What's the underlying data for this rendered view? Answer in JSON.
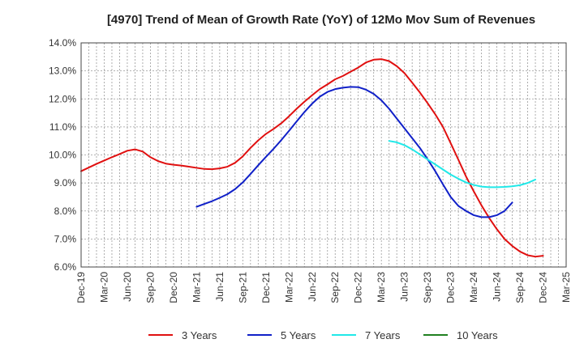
{
  "chart_data": {
    "type": "line",
    "title": "[4970]  Trend of Mean of Growth Rate (YoY) of 12Mo Mov Sum of Revenues",
    "xlabel": "",
    "ylabel": "",
    "ylim": [
      6.0,
      14.0
    ],
    "y_ticks": [
      6.0,
      7.0,
      8.0,
      9.0,
      10.0,
      11.0,
      12.0,
      13.0,
      14.0
    ],
    "y_tick_labels": [
      "6.0%",
      "7.0%",
      "8.0%",
      "9.0%",
      "10.0%",
      "11.0%",
      "12.0%",
      "13.0%",
      "14.0%"
    ],
    "x_tick_labels": [
      "Dec-19",
      "Mar-20",
      "Jun-20",
      "Sep-20",
      "Dec-20",
      "Mar-21",
      "Jun-21",
      "Sep-21",
      "Dec-21",
      "Mar-22",
      "Jun-22",
      "Sep-22",
      "Dec-22",
      "Mar-23",
      "Jun-23",
      "Sep-23",
      "Dec-23",
      "Mar-24",
      "Jun-24",
      "Sep-24",
      "Dec-24",
      "Mar-25"
    ],
    "x_range_months": [
      0,
      63
    ],
    "grid": true,
    "legend_position": "bottom",
    "series": [
      {
        "name": "3 Years",
        "color": "#e01010",
        "start_month": 0,
        "values": [
          9.42,
          9.55,
          9.68,
          9.8,
          9.92,
          10.03,
          10.15,
          10.2,
          10.12,
          9.92,
          9.78,
          9.69,
          9.65,
          9.62,
          9.58,
          9.54,
          9.5,
          9.49,
          9.52,
          9.58,
          9.72,
          9.95,
          10.25,
          10.52,
          10.75,
          10.93,
          11.13,
          11.38,
          11.65,
          11.9,
          12.13,
          12.35,
          12.52,
          12.7,
          12.82,
          12.97,
          13.12,
          13.3,
          13.4,
          13.42,
          13.35,
          13.17,
          12.92,
          12.58,
          12.23,
          11.85,
          11.45,
          11.0,
          10.42,
          9.83,
          9.23,
          8.7,
          8.2,
          7.75,
          7.35,
          7.0,
          6.75,
          6.55,
          6.42,
          6.37,
          6.4
        ]
      },
      {
        "name": "5 Years",
        "color": "#1020c8",
        "start_month": 15,
        "values": [
          8.15,
          8.25,
          8.35,
          8.47,
          8.6,
          8.78,
          9.02,
          9.32,
          9.63,
          9.93,
          10.22,
          10.53,
          10.86,
          11.2,
          11.53,
          11.83,
          12.08,
          12.25,
          12.35,
          12.4,
          12.43,
          12.42,
          12.33,
          12.18,
          11.95,
          11.65,
          11.3,
          10.95,
          10.6,
          10.25,
          9.85,
          9.42,
          8.95,
          8.5,
          8.18,
          8.0,
          7.85,
          7.78,
          7.78,
          7.85,
          8.0,
          8.3
        ]
      },
      {
        "name": "7 Years",
        "color": "#20e8e8",
        "start_month": 40,
        "values": [
          10.5,
          10.45,
          10.35,
          10.2,
          10.02,
          9.84,
          9.66,
          9.48,
          9.3,
          9.15,
          9.02,
          8.93,
          8.87,
          8.85,
          8.85,
          8.86,
          8.88,
          8.92,
          9.0,
          9.12
        ]
      },
      {
        "name": "10 Years",
        "color": "#208020",
        "start_month": 0,
        "values": []
      }
    ]
  }
}
